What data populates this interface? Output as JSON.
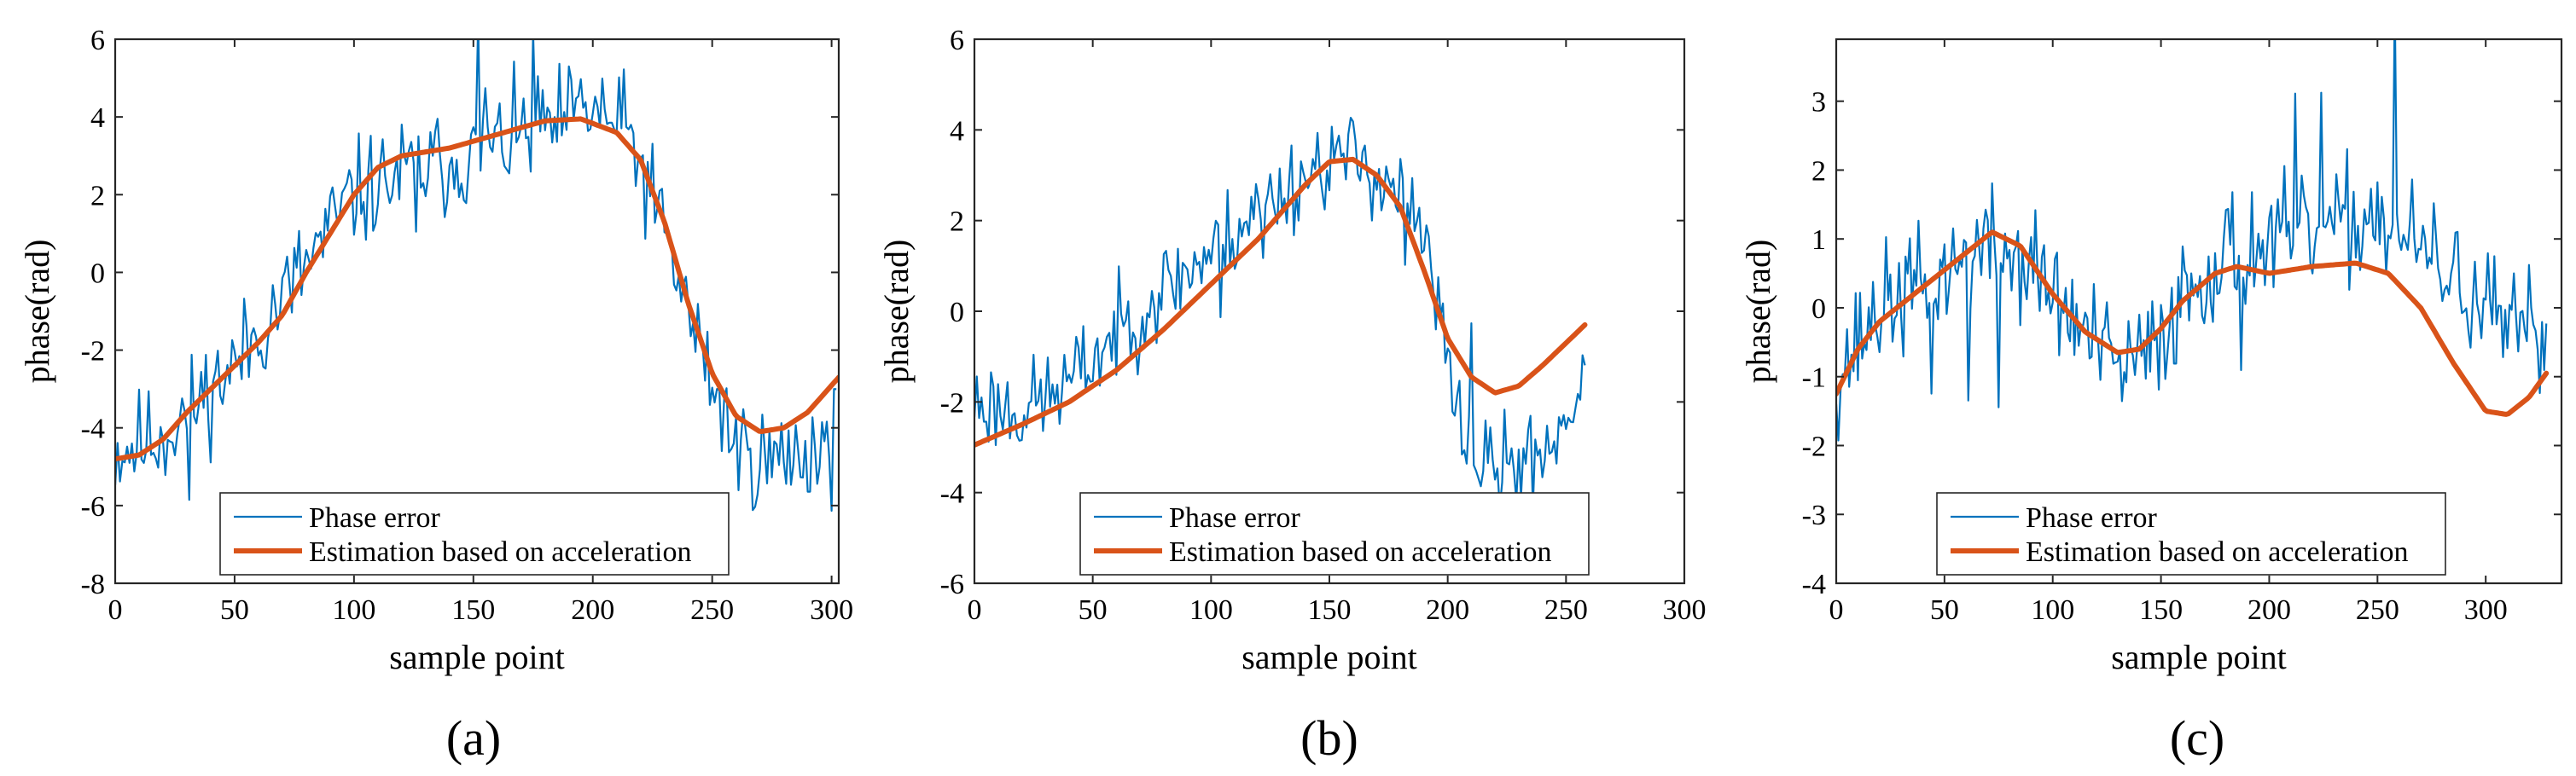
{
  "figure": {
    "colors": {
      "phase": "#0072BD",
      "estimate": "#D95319",
      "axis": "#262626"
    },
    "legend": {
      "phase_error": "Phase error",
      "estimation": "Estimation based on acceleration"
    }
  },
  "chart_data": [
    {
      "id": "a",
      "type": "line",
      "sublabel": "(a)",
      "xlabel": "sample point",
      "ylabel": "phase(rad)",
      "xlim": [
        0,
        303
      ],
      "ylim": [
        -8,
        6
      ],
      "xticks": [
        0,
        50,
        100,
        150,
        200,
        250,
        300
      ],
      "yticks": [
        -8,
        -6,
        -4,
        -2,
        0,
        2,
        4,
        6
      ],
      "legend_position": "bottom-center",
      "series": [
        {
          "name": "Phase error",
          "n_points": 303,
          "x_range": [
            0,
            302
          ],
          "noise_amplitude": 1.2,
          "spike_count": 6,
          "seed": 11,
          "trend": [
            [
              0,
              -4.6
            ],
            [
              20,
              -4.2
            ],
            [
              50,
              -2.4
            ],
            [
              80,
              0.2
            ],
            [
              100,
              2.0
            ],
            [
              120,
              2.5
            ],
            [
              150,
              3.0
            ],
            [
              180,
              3.8
            ],
            [
              200,
              4.2
            ],
            [
              215,
              3.6
            ],
            [
              230,
              1.0
            ],
            [
              245,
              -2.0
            ],
            [
              260,
              -4.5
            ],
            [
              275,
              -4.9
            ],
            [
              290,
              -4.6
            ],
            [
              302,
              -4.3
            ]
          ]
        },
        {
          "name": "Estimation based on acceleration",
          "points": [
            [
              0,
              -4.8
            ],
            [
              10,
              -4.7
            ],
            [
              20,
              -4.3
            ],
            [
              30,
              -3.6
            ],
            [
              40,
              -3.0
            ],
            [
              50,
              -2.4
            ],
            [
              60,
              -1.8
            ],
            [
              70,
              -1.1
            ],
            [
              80,
              0.0
            ],
            [
              90,
              1.0
            ],
            [
              100,
              2.0
            ],
            [
              110,
              2.7
            ],
            [
              120,
              3.0
            ],
            [
              140,
              3.2
            ],
            [
              160,
              3.55
            ],
            [
              180,
              3.9
            ],
            [
              195,
              3.95
            ],
            [
              210,
              3.6
            ],
            [
              220,
              2.9
            ],
            [
              230,
              1.3
            ],
            [
              240,
              -0.8
            ],
            [
              250,
              -2.6
            ],
            [
              260,
              -3.7
            ],
            [
              270,
              -4.1
            ],
            [
              280,
              -4.0
            ],
            [
              290,
              -3.6
            ],
            [
              303,
              -2.7
            ]
          ]
        }
      ]
    },
    {
      "id": "b",
      "type": "line",
      "sublabel": "(b)",
      "xlabel": "sample point",
      "ylabel": "phase(rad)",
      "xlim": [
        0,
        300
      ],
      "ylim": [
        -6,
        6
      ],
      "xticks": [
        0,
        50,
        100,
        150,
        200,
        250,
        300
      ],
      "yticks": [
        -6,
        -4,
        -2,
        0,
        2,
        4,
        6
      ],
      "legend_position": "bottom-center",
      "series": [
        {
          "name": "Phase error",
          "n_points": 259,
          "x_range": [
            0,
            258
          ],
          "noise_amplitude": 0.9,
          "spike_count": 5,
          "seed": 23,
          "trend": [
            [
              0,
              -2.0
            ],
            [
              20,
              -2.2
            ],
            [
              40,
              -1.6
            ],
            [
              60,
              -0.5
            ],
            [
              80,
              0.5
            ],
            [
              100,
              1.3
            ],
            [
              120,
              2.3
            ],
            [
              140,
              3.0
            ],
            [
              150,
              3.4
            ],
            [
              165,
              3.3
            ],
            [
              180,
              2.6
            ],
            [
              190,
              1.5
            ],
            [
              200,
              -1.0
            ],
            [
              210,
              -3.2
            ],
            [
              220,
              -3.5
            ],
            [
              235,
              -3.3
            ],
            [
              245,
              -2.8
            ],
            [
              258,
              -1.5
            ]
          ]
        },
        {
          "name": "Estimation based on acceleration",
          "points": [
            [
              0,
              -2.95
            ],
            [
              20,
              -2.5
            ],
            [
              40,
              -2.0
            ],
            [
              60,
              -1.3
            ],
            [
              80,
              -0.4
            ],
            [
              100,
              0.6
            ],
            [
              120,
              1.6
            ],
            [
              140,
              2.8
            ],
            [
              150,
              3.3
            ],
            [
              160,
              3.35
            ],
            [
              170,
              3.0
            ],
            [
              180,
              2.3
            ],
            [
              190,
              0.9
            ],
            [
              200,
              -0.6
            ],
            [
              210,
              -1.45
            ],
            [
              220,
              -1.8
            ],
            [
              230,
              -1.65
            ],
            [
              240,
              -1.2
            ],
            [
              250,
              -0.7
            ],
            [
              258,
              -0.3
            ]
          ]
        }
      ]
    },
    {
      "id": "c",
      "type": "line",
      "sublabel": "(c)",
      "xlabel": "sample point",
      "ylabel": "phase(rad)",
      "xlim": [
        0,
        335
      ],
      "ylim": [
        -4,
        3.9
      ],
      "xticks": [
        0,
        50,
        100,
        150,
        200,
        250,
        300
      ],
      "yticks": [
        -4,
        -3,
        -2,
        -1,
        0,
        1,
        2,
        3
      ],
      "legend_position": "bottom-center",
      "series": [
        {
          "name": "Phase error",
          "n_points": 329,
          "x_range": [
            0,
            328
          ],
          "noise_amplitude": 0.75,
          "spike_count": 7,
          "seed": 37,
          "trend": [
            [
              0,
              -1.0
            ],
            [
              20,
              0.0
            ],
            [
              50,
              0.5
            ],
            [
              70,
              0.9
            ],
            [
              90,
              0.6
            ],
            [
              110,
              -0.2
            ],
            [
              130,
              -0.9
            ],
            [
              145,
              -0.7
            ],
            [
              160,
              0.2
            ],
            [
              180,
              0.8
            ],
            [
              200,
              0.9
            ],
            [
              230,
              1.1
            ],
            [
              250,
              1.4
            ],
            [
              270,
              0.8
            ],
            [
              290,
              0.3
            ],
            [
              310,
              -0.4
            ],
            [
              328,
              -0.4
            ]
          ]
        },
        {
          "name": "Estimation based on acceleration",
          "points": [
            [
              0,
              -1.25
            ],
            [
              10,
              -0.6
            ],
            [
              20,
              -0.2
            ],
            [
              40,
              0.3
            ],
            [
              60,
              0.8
            ],
            [
              72,
              1.1
            ],
            [
              85,
              0.9
            ],
            [
              100,
              0.2
            ],
            [
              115,
              -0.35
            ],
            [
              130,
              -0.65
            ],
            [
              140,
              -0.6
            ],
            [
              150,
              -0.3
            ],
            [
              160,
              0.1
            ],
            [
              175,
              0.5
            ],
            [
              185,
              0.6
            ],
            [
              200,
              0.5
            ],
            [
              220,
              0.6
            ],
            [
              240,
              0.65
            ],
            [
              255,
              0.5
            ],
            [
              270,
              0.0
            ],
            [
              285,
              -0.8
            ],
            [
              300,
              -1.5
            ],
            [
              310,
              -1.55
            ],
            [
              320,
              -1.3
            ],
            [
              328,
              -0.95
            ]
          ]
        }
      ]
    }
  ]
}
